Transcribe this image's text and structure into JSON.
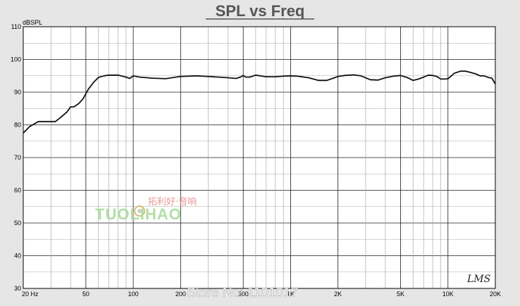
{
  "chart_data": {
    "type": "line",
    "title": "SPL vs Freq",
    "ylabel": "dBSPL",
    "xlabel": "",
    "x_scale": "log",
    "xlim": [
      20,
      20000
    ],
    "ylim": [
      30,
      110
    ],
    "grid": true,
    "x_tick_labels": [
      {
        "value": 20,
        "label": "20  Hz"
      },
      {
        "value": 50,
        "label": "50"
      },
      {
        "value": 100,
        "label": "100"
      },
      {
        "value": 200,
        "label": "200"
      },
      {
        "value": 500,
        "label": "500"
      },
      {
        "value": 1000,
        "label": "1K"
      },
      {
        "value": 2000,
        "label": "2K"
      },
      {
        "value": 5000,
        "label": "5K"
      },
      {
        "value": 10000,
        "label": "10K"
      },
      {
        "value": 20000,
        "label": "20K"
      }
    ],
    "y_ticks": [
      30,
      40,
      50,
      60,
      70,
      80,
      90,
      100,
      110
    ],
    "series": [
      {
        "color": "#111111",
        "x": [
          20,
          22,
          25,
          28,
          32,
          35,
          38,
          40,
          42,
          45,
          48,
          52,
          56,
          60,
          65,
          70,
          80,
          90,
          95,
          100,
          110,
          130,
          160,
          200,
          250,
          300,
          350,
          400,
          450,
          480,
          500,
          520,
          550,
          600,
          700,
          800,
          900,
          1000,
          1100,
          1300,
          1500,
          1700,
          1900,
          2000,
          2200,
          2500,
          2800,
          3200,
          3600,
          4000,
          4500,
          5000,
          5500,
          6000,
          6500,
          7000,
          7500,
          8000,
          8500,
          9000,
          9500,
          10000,
          11000,
          12000,
          13000,
          14000,
          15000,
          16000,
          17000,
          18000,
          19000,
          20000
        ],
        "y": [
          77.5,
          79.5,
          81,
          81,
          81,
          82.5,
          84,
          85.5,
          85.5,
          86.5,
          88,
          91,
          93,
          94.5,
          95,
          95.2,
          95.2,
          94.6,
          94.2,
          95,
          94.6,
          94.3,
          94.1,
          94.8,
          95,
          94.8,
          94.6,
          94.4,
          94.2,
          94.6,
          95.1,
          94.6,
          94.6,
          95.2,
          94.7,
          94.7,
          94.9,
          95,
          94.9,
          94.4,
          93.6,
          93.6,
          94.4,
          94.8,
          95.1,
          95.3,
          95,
          93.8,
          93.7,
          94.4,
          94.9,
          95.1,
          94.5,
          93.6,
          94,
          94.6,
          95.2,
          95.1,
          94.8,
          94,
          94,
          94.1,
          95.8,
          96.4,
          96.4,
          96,
          95.6,
          95,
          95,
          94.5,
          94.3,
          92.5
        ]
      }
    ],
    "annotations": [
      "LMS"
    ]
  },
  "watermark": {
    "cn": "拓利好·音响",
    "en": "TUOLIHAO",
    "store": "Store No: 1101017"
  }
}
